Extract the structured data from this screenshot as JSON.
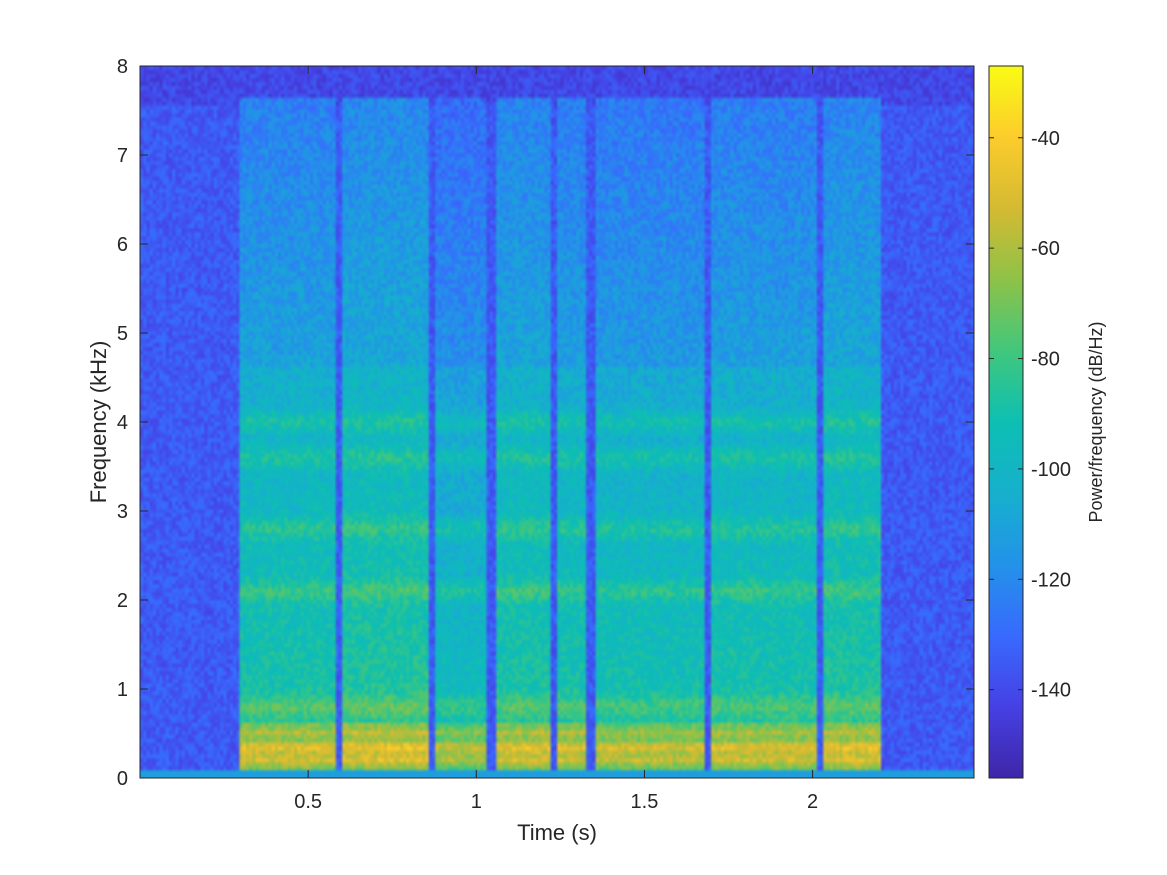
{
  "chart_data": {
    "type": "heatmap",
    "title": "",
    "xlabel": "Time (s)",
    "ylabel": "Frequency (kHz)",
    "colorbar_label": "Power/frequency (dB/Hz)",
    "colormap": "parula",
    "xlim": [
      0,
      2.48
    ],
    "ylim": [
      0,
      8
    ],
    "clim": [
      -156,
      -27
    ],
    "x_ticks": [
      0.5,
      1,
      1.5,
      2
    ],
    "x_tick_labels": [
      "0.5",
      "1",
      "1.5",
      "2"
    ],
    "y_ticks": [
      0,
      1,
      2,
      3,
      4,
      5,
      6,
      7,
      8
    ],
    "y_tick_labels": [
      "0",
      "1",
      "2",
      "3",
      "4",
      "5",
      "6",
      "7",
      "8"
    ],
    "colorbar_ticks": [
      -140,
      -120,
      -100,
      -80,
      -60,
      -40
    ],
    "colorbar_tick_labels": [
      "-140",
      "-120",
      "-100",
      "-80",
      "-60",
      "-40"
    ],
    "background_level_db": -135,
    "speech_segments_s": [
      {
        "start": 0.3,
        "end": 0.58,
        "level_db": -85
      },
      {
        "start": 0.6,
        "end": 0.86,
        "level_db": -82
      },
      {
        "start": 0.88,
        "end": 1.03,
        "level_db": -92
      },
      {
        "start": 1.06,
        "end": 1.22,
        "level_db": -84
      },
      {
        "start": 1.24,
        "end": 1.33,
        "level_db": -86
      },
      {
        "start": 1.35,
        "end": 1.68,
        "level_db": -88
      },
      {
        "start": 1.7,
        "end": 2.01,
        "level_db": -86
      },
      {
        "start": 2.03,
        "end": 2.2,
        "level_db": -83
      }
    ],
    "formant_bands_khz": [
      0.3,
      0.8,
      2.1,
      2.8,
      3.6,
      4.0
    ],
    "grid": false
  }
}
